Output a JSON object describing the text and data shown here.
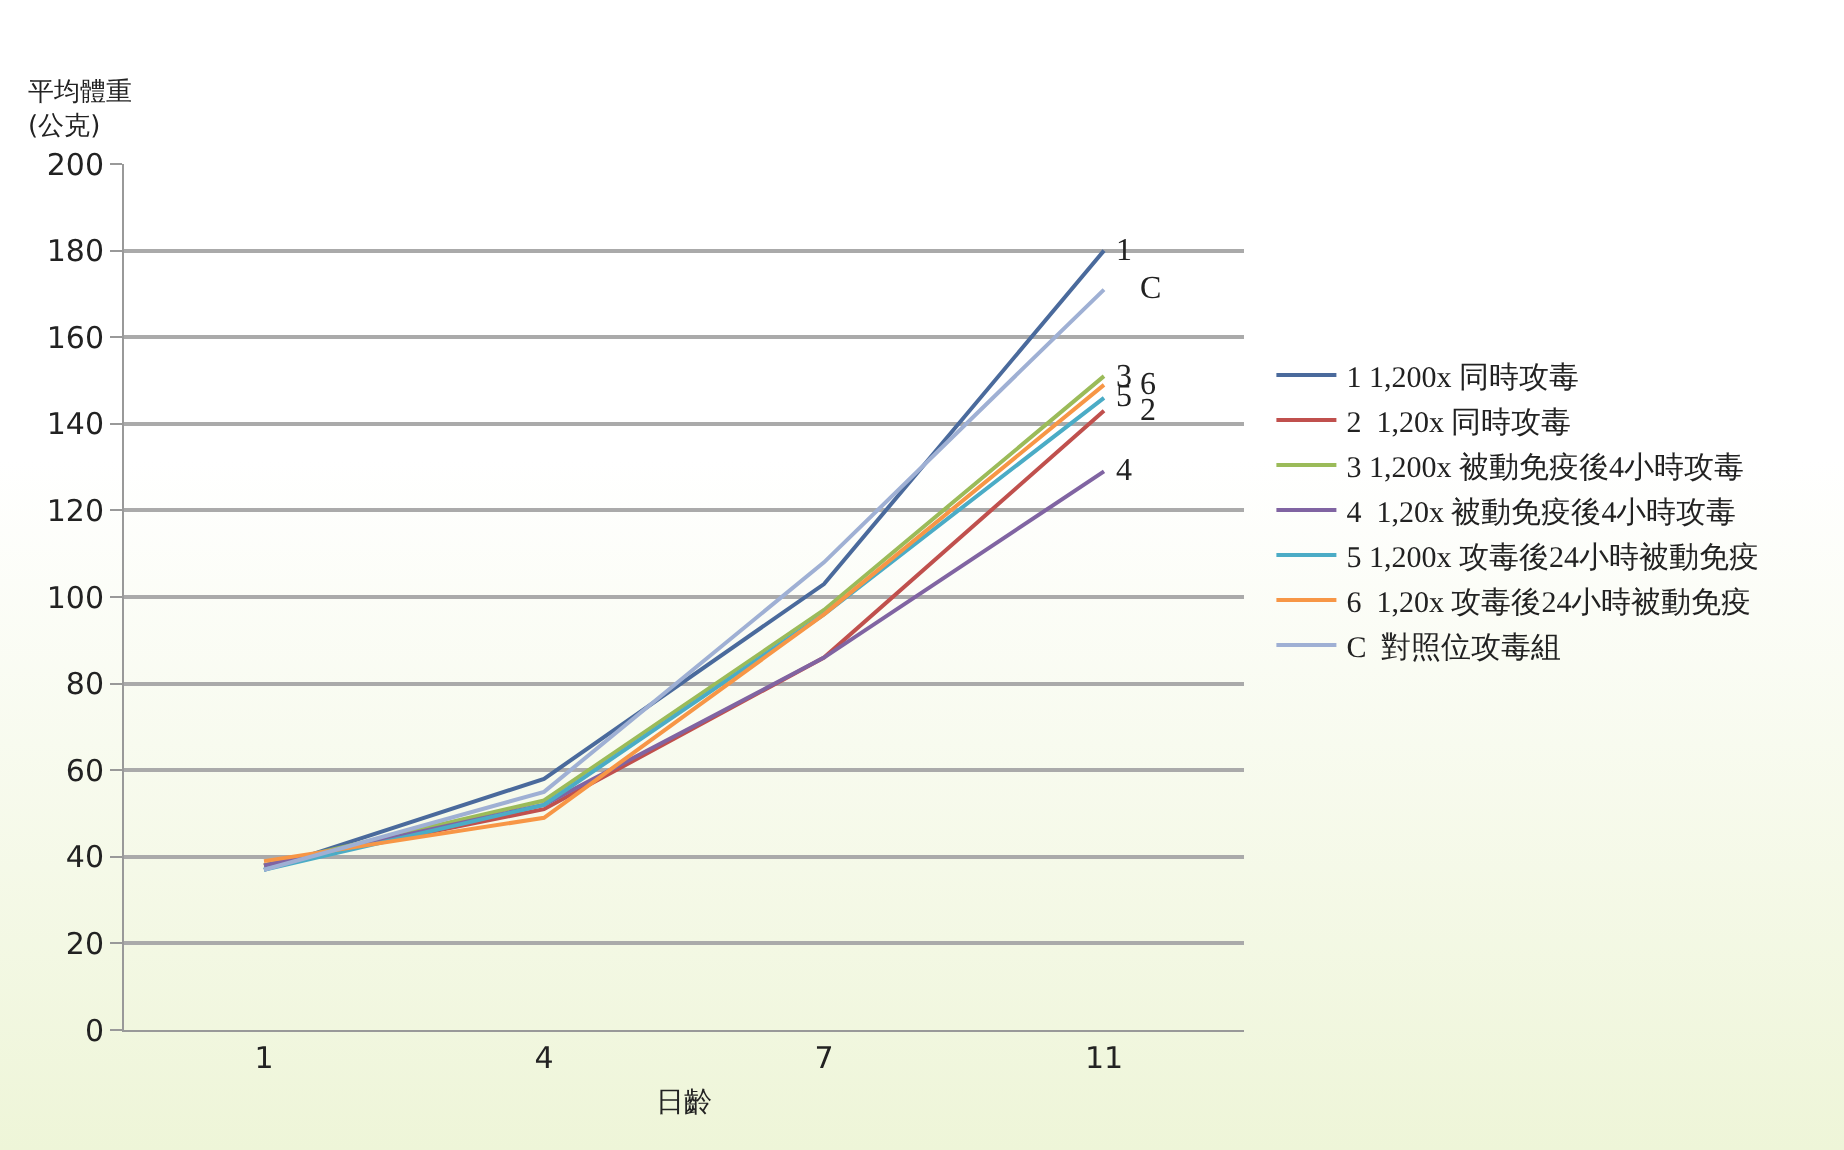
{
  "chart_data": {
    "type": "line",
    "ylabel": "平均體重\n(公克)",
    "xlabel": "日齡",
    "categories": [
      "1",
      "4",
      "7",
      "11"
    ],
    "series": [
      {
        "name": "1 1,200x 同時攻毒",
        "color": "#4a6a9c",
        "values": [
          37,
          58,
          103,
          180
        ]
      },
      {
        "name": "2  1,20x 同時攻毒",
        "color": "#c0504d",
        "values": [
          38,
          51,
          86,
          143
        ]
      },
      {
        "name": "3 1,200x 被動免疫後4小時攻毒",
        "color": "#9bbb59",
        "values": [
          38,
          53,
          97,
          151
        ]
      },
      {
        "name": "4  1,20x 被動免疫後4小時攻毒",
        "color": "#8064a2",
        "values": [
          38,
          52,
          86,
          129
        ]
      },
      {
        "name": "5 1,200x 攻毒後24小時被動免疫",
        "color": "#4bacc6",
        "values": [
          37,
          52,
          96,
          146
        ]
      },
      {
        "name": "6  1,20x 攻毒後24小時被動免疫",
        "color": "#f79646",
        "values": [
          39,
          49,
          96,
          149
        ]
      },
      {
        "name": "C  對照位攻毒組",
        "color": "#9fb0d4",
        "values": [
          37,
          55,
          108,
          171
        ]
      }
    ],
    "annotations": [
      {
        "text": "1",
        "x": "11",
        "y": 180
      },
      {
        "text": "C",
        "x": "11",
        "y": 171
      },
      {
        "text": "3",
        "x": "11",
        "y": 151
      },
      {
        "text": "6",
        "x": "11",
        "y": 149
      },
      {
        "text": "5",
        "x": "11",
        "y": 146
      },
      {
        "text": "2",
        "x": "11",
        "y": 143
      },
      {
        "text": "4",
        "x": "11",
        "y": 129
      }
    ],
    "ylim": [
      0,
      200
    ],
    "yticks": [
      0,
      20,
      40,
      60,
      80,
      100,
      120,
      140,
      160,
      180,
      200
    ],
    "grid": "y",
    "legend": "right",
    "marker": "none",
    "line_style": "solid"
  }
}
